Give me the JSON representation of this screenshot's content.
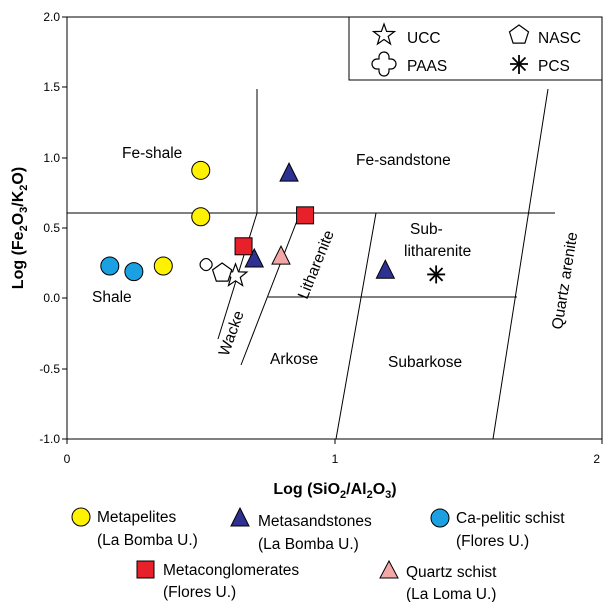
{
  "chart_data": {
    "type": "scatter",
    "xlabel": "Log (SiO2/Al2O3)",
    "ylabel": "Log (Fe2O3/K2O)",
    "xlim": [
      0,
      2
    ],
    "ylim": [
      -1.0,
      2.0
    ],
    "x_ticks": [
      "0",
      "1",
      "2"
    ],
    "y_ticks": [
      "2.0",
      "1.5",
      "1.0",
      "0.5",
      "0.0",
      "-0.5",
      "-1.0"
    ],
    "grid": false,
    "regions": [
      "Fe-shale",
      "Fe-sandstone",
      "Shale",
      "Litharenite",
      "Sub-",
      "litharenite",
      "Quartz arenite",
      "Wacke",
      "Arkose",
      "Subarkose"
    ],
    "reference_legend": [
      {
        "name": "UCC",
        "symbol": "star"
      },
      {
        "name": "NASC",
        "symbol": "pentagon"
      },
      {
        "name": "PAAS",
        "symbol": "cross"
      },
      {
        "name": "PCS",
        "symbol": "asterisk"
      }
    ],
    "reference_points": [
      {
        "name": "UCC",
        "x": 0.63,
        "y": 0.16
      },
      {
        "name": "NASC",
        "x": 0.58,
        "y": 0.18
      },
      {
        "name": "PAAS",
        "x": 0.52,
        "y": 0.24
      },
      {
        "name": "PCS",
        "x": 1.38,
        "y": 0.17
      }
    ],
    "series": [
      {
        "name": "Metapelites",
        "unit": "(La Bomba U.)",
        "marker": "circle",
        "color": "#FFF200",
        "points": [
          [
            0.5,
            0.91
          ],
          [
            0.5,
            0.58
          ],
          [
            0.36,
            0.23
          ]
        ]
      },
      {
        "name": "Metasandstones",
        "unit": "(La Bomba U.)",
        "marker": "triangle",
        "color": "#2E3192",
        "points": [
          [
            0.83,
            0.89
          ],
          [
            0.7,
            0.28
          ],
          [
            1.19,
            0.2
          ]
        ]
      },
      {
        "name": "Ca-pelitic schist",
        "unit": "(Flores U.)",
        "marker": "circle",
        "color": "#1BA1E2",
        "points": [
          [
            0.16,
            0.23
          ],
          [
            0.25,
            0.19
          ]
        ]
      },
      {
        "name": "Metaconglomerates",
        "unit": "(Flores U.)",
        "marker": "square",
        "color": "#E8202A",
        "points": [
          [
            0.66,
            0.37
          ],
          [
            0.89,
            0.59
          ]
        ]
      },
      {
        "name": "Quartz schist",
        "unit": "(La Loma U.)",
        "marker": "triangle",
        "color": "#F4A7A7",
        "points": [
          [
            0.8,
            0.3
          ]
        ]
      }
    ]
  }
}
